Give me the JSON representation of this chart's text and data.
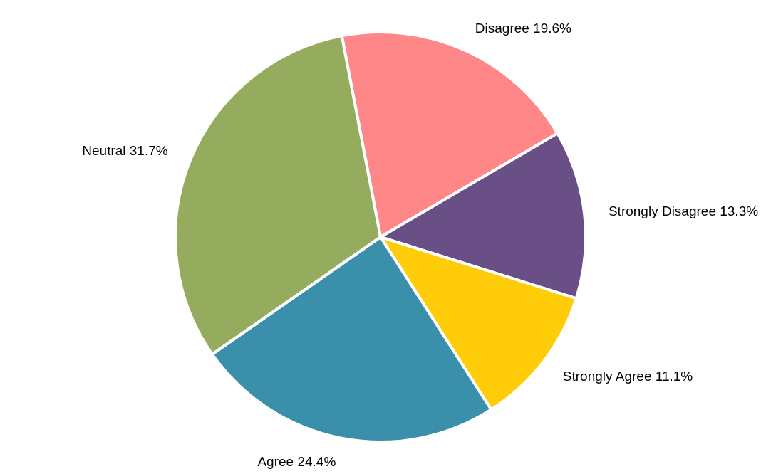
{
  "chart_data": {
    "type": "pie",
    "categories": [
      "Disagree",
      "Strongly Disagree",
      "Strongly Agree",
      "Agree",
      "Neutral"
    ],
    "values": [
      19.6,
      13.3,
      11.1,
      24.4,
      31.7
    ],
    "value_labels": [
      "19.6%",
      "13.3%",
      "11.1%",
      "24.4%",
      "31.7%"
    ],
    "colors": [
      "#ff8787",
      "#6a4f86",
      "#ffcc0a",
      "#3a8fab",
      "#95ab5e"
    ]
  }
}
